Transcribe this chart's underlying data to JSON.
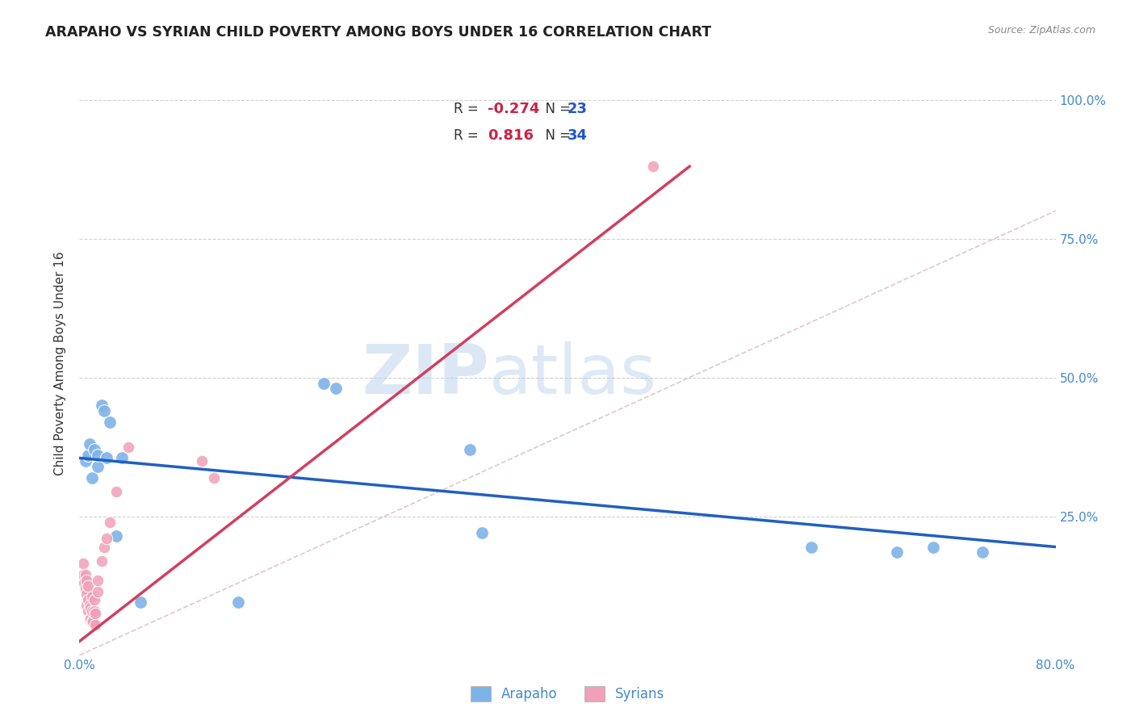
{
  "title": "ARAPAHO VS SYRIAN CHILD POVERTY AMONG BOYS UNDER 16 CORRELATION CHART",
  "source": "Source: ZipAtlas.com",
  "ylabel": "Child Poverty Among Boys Under 16",
  "xlim": [
    0.0,
    0.8
  ],
  "ylim": [
    0.0,
    1.05
  ],
  "xticks": [
    0.0,
    0.1,
    0.2,
    0.3,
    0.4,
    0.5,
    0.6,
    0.7,
    0.8
  ],
  "xticklabels": [
    "0.0%",
    "",
    "",
    "",
    "",
    "",
    "",
    "",
    "80.0%"
  ],
  "yticks": [
    0.0,
    0.25,
    0.5,
    0.75,
    1.0
  ],
  "yticklabels": [
    "",
    "25.0%",
    "50.0%",
    "75.0%",
    "100.0%"
  ],
  "background_color": "#ffffff",
  "grid_color": "#cccccc",
  "watermark_zip": "ZIP",
  "watermark_atlas": "atlas",
  "arapaho_color": "#7eb3e8",
  "syrian_color": "#f0a0b8",
  "arapaho_line_color": "#2060c0",
  "syrian_line_color": "#d04060",
  "diagonal_color": "#ddb8c0",
  "legend_r_arapaho": "-0.274",
  "legend_n_arapaho": "23",
  "legend_r_syrian": "0.816",
  "legend_n_syrian": "34",
  "arapaho_x": [
    0.005,
    0.007,
    0.008,
    0.01,
    0.012,
    0.015,
    0.015,
    0.018,
    0.02,
    0.022,
    0.025,
    0.03,
    0.035,
    0.05,
    0.13,
    0.2,
    0.21,
    0.32,
    0.33,
    0.6,
    0.67,
    0.7,
    0.74
  ],
  "arapaho_y": [
    0.35,
    0.36,
    0.38,
    0.32,
    0.37,
    0.34,
    0.36,
    0.45,
    0.44,
    0.355,
    0.42,
    0.215,
    0.355,
    0.095,
    0.095,
    0.49,
    0.48,
    0.37,
    0.22,
    0.195,
    0.185,
    0.195,
    0.185
  ],
  "syrian_x": [
    0.003,
    0.003,
    0.004,
    0.005,
    0.005,
    0.006,
    0.006,
    0.006,
    0.007,
    0.007,
    0.007,
    0.008,
    0.008,
    0.009,
    0.009,
    0.01,
    0.01,
    0.01,
    0.011,
    0.012,
    0.012,
    0.013,
    0.013,
    0.015,
    0.015,
    0.018,
    0.02,
    0.022,
    0.025,
    0.03,
    0.04,
    0.1,
    0.11,
    0.47
  ],
  "syrian_y": [
    0.145,
    0.165,
    0.13,
    0.12,
    0.145,
    0.09,
    0.11,
    0.135,
    0.08,
    0.1,
    0.125,
    0.065,
    0.09,
    0.065,
    0.085,
    0.06,
    0.08,
    0.105,
    0.06,
    0.08,
    0.1,
    0.055,
    0.075,
    0.115,
    0.135,
    0.17,
    0.195,
    0.21,
    0.24,
    0.295,
    0.375,
    0.35,
    0.32,
    0.88
  ],
  "arapaho_trend_x0": 0.0,
  "arapaho_trend_y0": 0.355,
  "arapaho_trend_x1": 0.8,
  "arapaho_trend_y1": 0.195,
  "syrian_trend_x0": 0.0,
  "syrian_trend_y0": 0.025,
  "syrian_trend_x1": 0.5,
  "syrian_trend_y1": 0.88
}
